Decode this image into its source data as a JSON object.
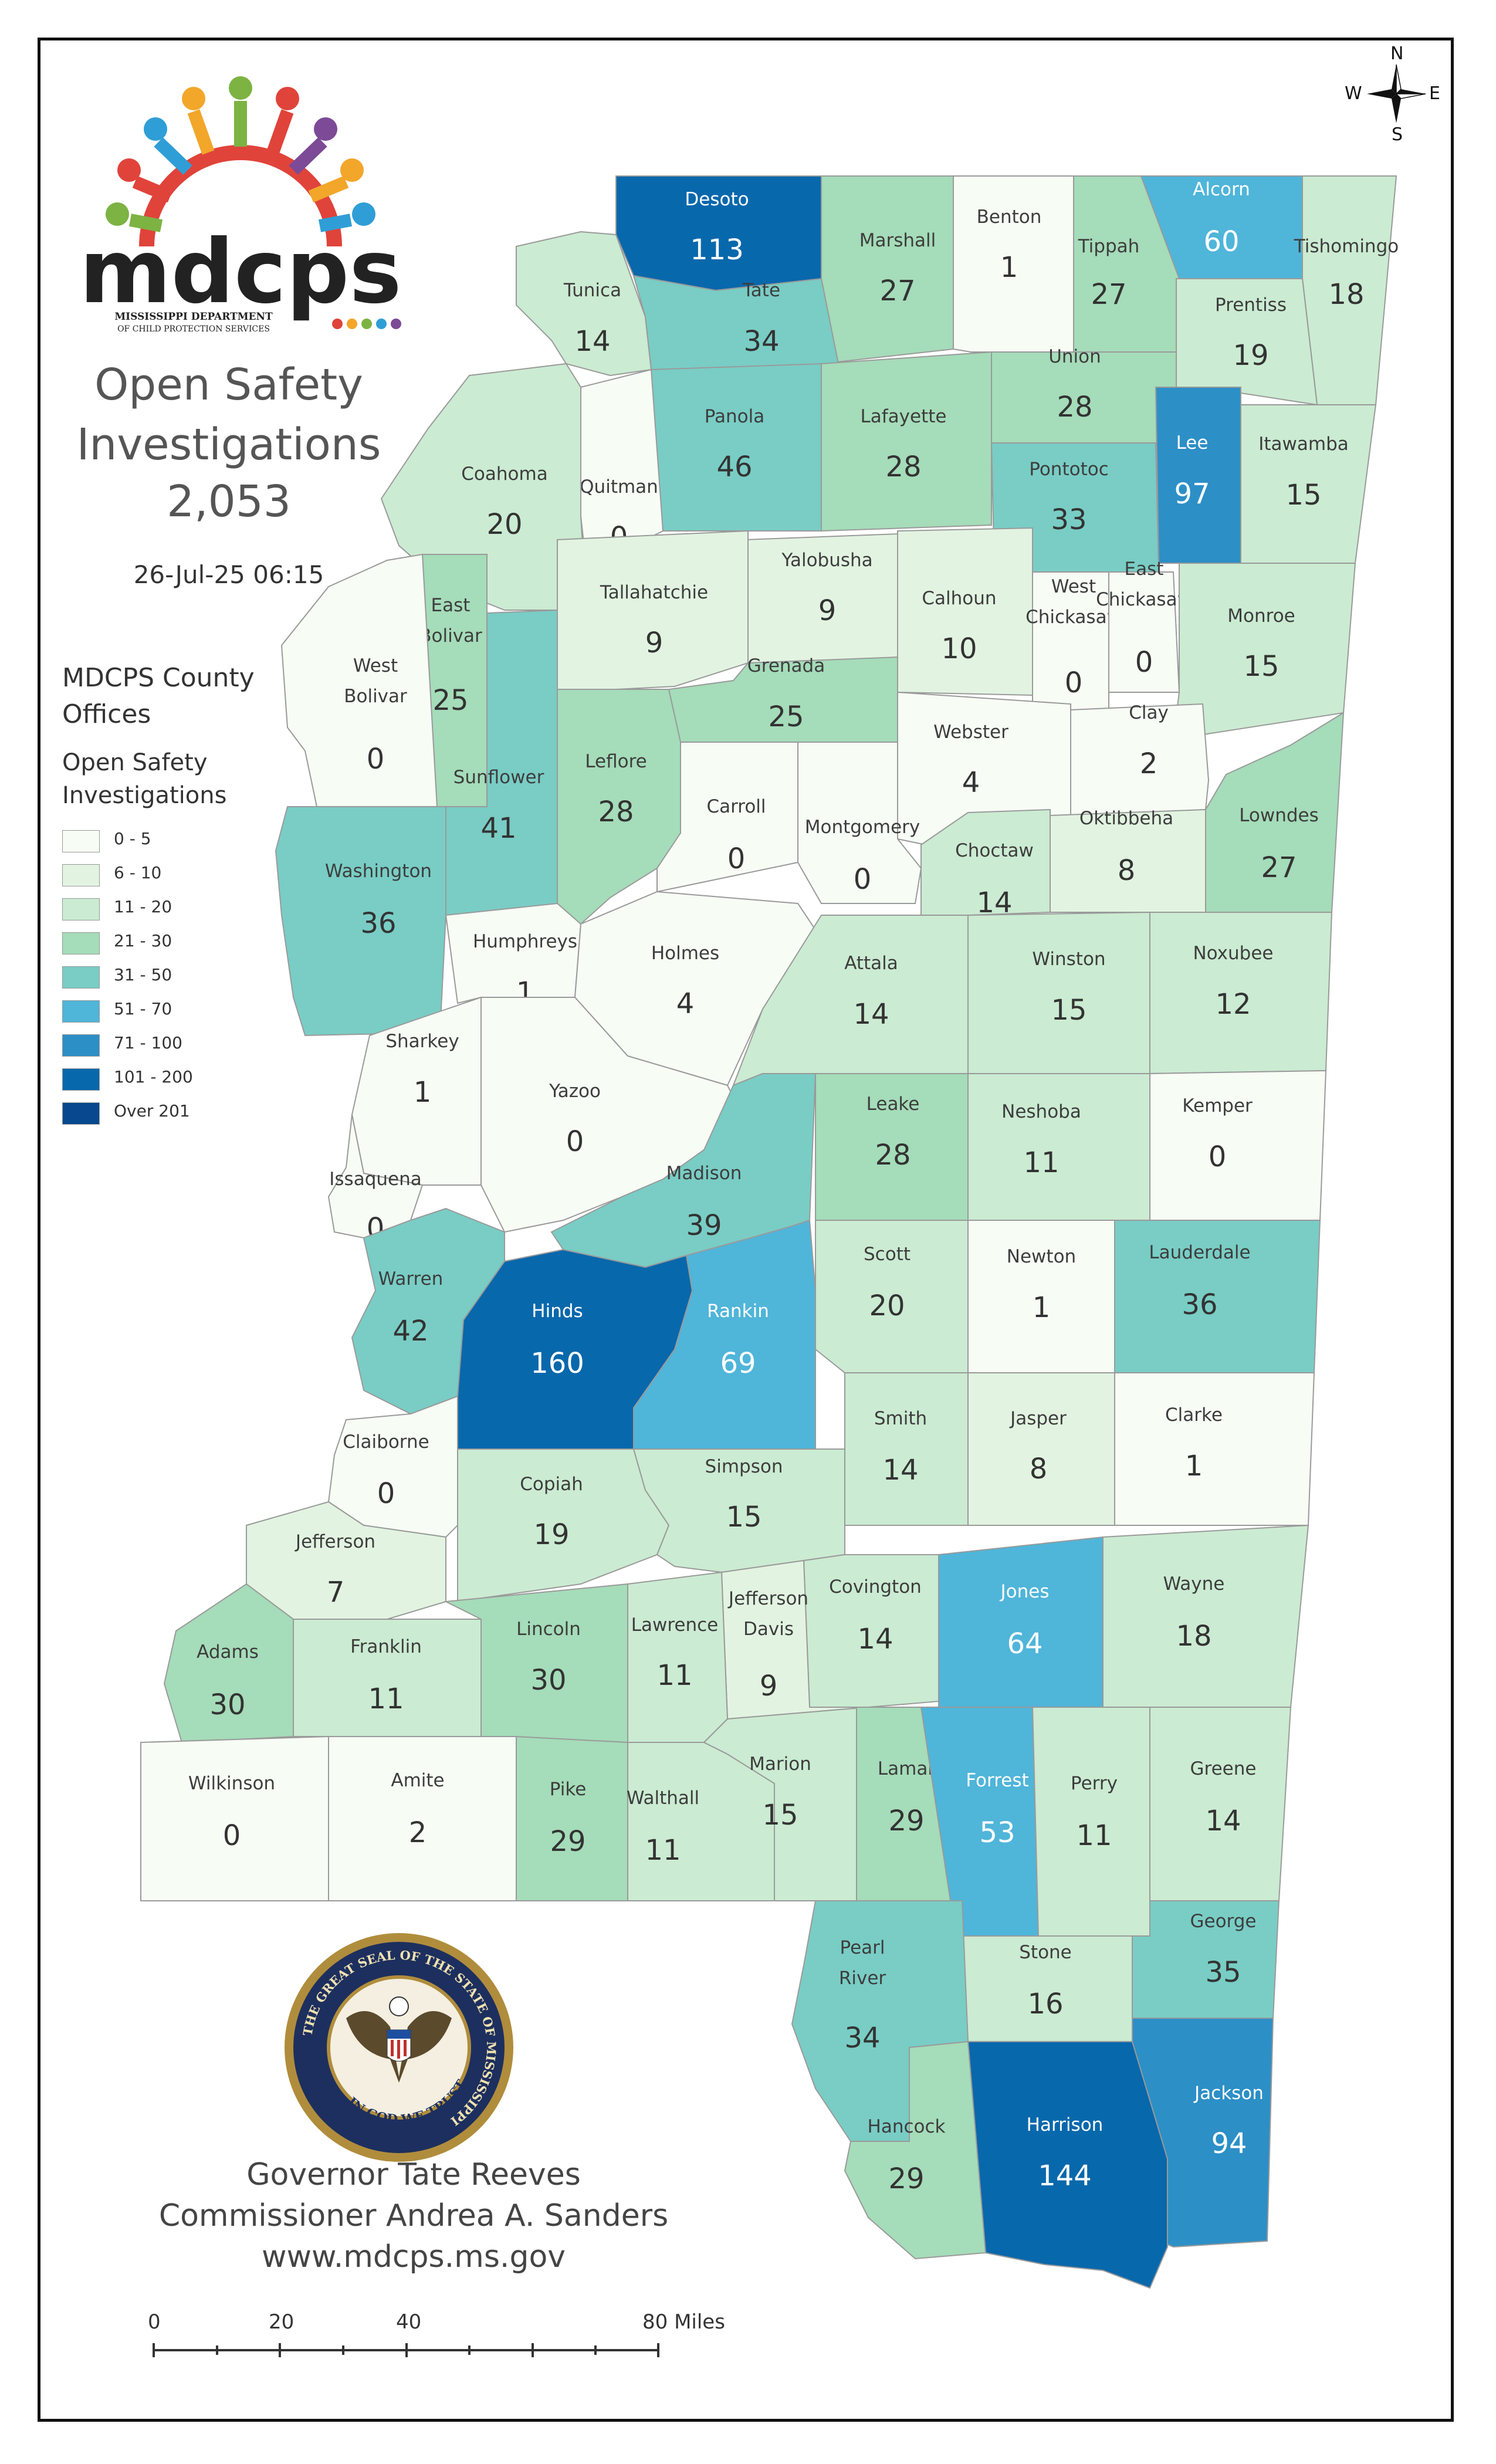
{
  "header": {
    "logo_text": "mdcps",
    "logo_subtitle_1": "MISSISSIPPI DEPARTMENT",
    "logo_subtitle_2": "OF CHILD PROTECTION SERVICES",
    "title_line1": "Open Safety",
    "title_line2": "Investigations",
    "total": "2,053",
    "timestamp": "26-Jul-25 06:15"
  },
  "legend": {
    "offices_label_1": "MDCPS County",
    "offices_label_2": "Offices",
    "title_line1": "Open Safety",
    "title_line2": "Investigations",
    "classes": [
      {
        "label": "0 - 5",
        "color": "#f7fcf5"
      },
      {
        "label": "6 - 10",
        "color": "#e2f4e1"
      },
      {
        "label": "11 - 20",
        "color": "#cbebd2"
      },
      {
        "label": "21 - 30",
        "color": "#a5dcb9"
      },
      {
        "label": "31 - 50",
        "color": "#79cdc5"
      },
      {
        "label": "51 - 70",
        "color": "#4fb5d9"
      },
      {
        "label": "71 - 100",
        "color": "#2c8fc6"
      },
      {
        "label": "101 - 200",
        "color": "#0868ac"
      },
      {
        "label": "Over 201",
        "color": "#08488e"
      }
    ]
  },
  "compass": {
    "n": "N",
    "s": "S",
    "e": "E",
    "w": "W"
  },
  "counties": [
    {
      "name": "Desoto",
      "value": "113"
    },
    {
      "name": "Marshall",
      "value": "27"
    },
    {
      "name": "Benton",
      "value": "1"
    },
    {
      "name": "Tippah",
      "value": "27"
    },
    {
      "name": "Alcorn",
      "value": "60"
    },
    {
      "name": "Tishomingo",
      "value": "18"
    },
    {
      "name": "Tunica",
      "value": "14"
    },
    {
      "name": "Tate",
      "value": "34"
    },
    {
      "name": "Prentiss",
      "value": "19"
    },
    {
      "name": "Union",
      "value": "28"
    },
    {
      "name": "Panola",
      "value": "46"
    },
    {
      "name": "Lafayette",
      "value": "28"
    },
    {
      "name": "Lee",
      "value": "97"
    },
    {
      "name": "Itawamba",
      "value": "15"
    },
    {
      "name": "Quitman",
      "value": "0"
    },
    {
      "name": "Coahoma",
      "value": "20"
    },
    {
      "name": "Pontotoc",
      "value": "33"
    },
    {
      "name": "Yalobusha",
      "value": "9"
    },
    {
      "name": "Calhoun",
      "value": "10"
    },
    {
      "name": "West Chickasaw",
      "value": "0"
    },
    {
      "name": "East Chickasaw",
      "value": "0"
    },
    {
      "name": "Monroe",
      "value": "15"
    },
    {
      "name": "Tallahatchie",
      "value": "9"
    },
    {
      "name": "East Bolivar",
      "value": "25"
    },
    {
      "name": "West Bolivar",
      "value": "0"
    },
    {
      "name": "Grenada",
      "value": "25"
    },
    {
      "name": "Clay",
      "value": "2"
    },
    {
      "name": "Webster",
      "value": "4"
    },
    {
      "name": "Sunflower",
      "value": "41"
    },
    {
      "name": "Leflore",
      "value": "28"
    },
    {
      "name": "Carroll",
      "value": "0"
    },
    {
      "name": "Montgomery",
      "value": "0"
    },
    {
      "name": "Oktibbeha",
      "value": "8"
    },
    {
      "name": "Lowndes",
      "value": "27"
    },
    {
      "name": "Choctaw",
      "value": "14"
    },
    {
      "name": "Washington",
      "value": "36"
    },
    {
      "name": "Humphreys",
      "value": "1"
    },
    {
      "name": "Holmes",
      "value": "4"
    },
    {
      "name": "Attala",
      "value": "14"
    },
    {
      "name": "Winston",
      "value": "15"
    },
    {
      "name": "Noxubee",
      "value": "12"
    },
    {
      "name": "Sharkey",
      "value": "1"
    },
    {
      "name": "Yazoo",
      "value": "0"
    },
    {
      "name": "Leake",
      "value": "28"
    },
    {
      "name": "Neshoba",
      "value": "11"
    },
    {
      "name": "Kemper",
      "value": "0"
    },
    {
      "name": "Issaquena",
      "value": "0"
    },
    {
      "name": "Madison",
      "value": "39"
    },
    {
      "name": "Warren",
      "value": "42"
    },
    {
      "name": "Hinds",
      "value": "160"
    },
    {
      "name": "Rankin",
      "value": "69"
    },
    {
      "name": "Scott",
      "value": "20"
    },
    {
      "name": "Newton",
      "value": "1"
    },
    {
      "name": "Lauderdale",
      "value": "36"
    },
    {
      "name": "Claiborne",
      "value": "0"
    },
    {
      "name": "Smith",
      "value": "14"
    },
    {
      "name": "Jasper",
      "value": "8"
    },
    {
      "name": "Clarke",
      "value": "1"
    },
    {
      "name": "Copiah",
      "value": "19"
    },
    {
      "name": "Simpson",
      "value": "15"
    },
    {
      "name": "Jefferson",
      "value": "7"
    },
    {
      "name": "Covington",
      "value": "14"
    },
    {
      "name": "Jones",
      "value": "64"
    },
    {
      "name": "Wayne",
      "value": "18"
    },
    {
      "name": "Jefferson Davis",
      "value": "9"
    },
    {
      "name": "Adams",
      "value": "30"
    },
    {
      "name": "Franklin",
      "value": "11"
    },
    {
      "name": "Lincoln",
      "value": "30"
    },
    {
      "name": "Lawrence",
      "value": "11"
    },
    {
      "name": "Wilkinson",
      "value": "0"
    },
    {
      "name": "Amite",
      "value": "2"
    },
    {
      "name": "Pike",
      "value": "29"
    },
    {
      "name": "Walthall",
      "value": "11"
    },
    {
      "name": "Marion",
      "value": "15"
    },
    {
      "name": "Lamar",
      "value": "29"
    },
    {
      "name": "Forrest",
      "value": "53"
    },
    {
      "name": "Perry",
      "value": "11"
    },
    {
      "name": "Greene",
      "value": "14"
    },
    {
      "name": "George",
      "value": "35"
    },
    {
      "name": "Stone",
      "value": "16"
    },
    {
      "name": "Pearl River",
      "value": "34"
    },
    {
      "name": "Jackson",
      "value": "94"
    },
    {
      "name": "Harrison",
      "value": "144"
    },
    {
      "name": "Hancock",
      "value": "29"
    }
  ],
  "seal": {
    "ring_text": "THE GREAT SEAL OF THE STATE OF MISSISSIPPI",
    "motto": "IN GOD WE TRUST"
  },
  "credits": {
    "line1": "Governor Tate Reeves",
    "line2": "Commissioner Andrea A. Sanders",
    "line3": "www.mdcps.ms.gov"
  },
  "scale": {
    "l0": "0",
    "l20": "20",
    "l40": "40",
    "l80": "80 Miles"
  }
}
